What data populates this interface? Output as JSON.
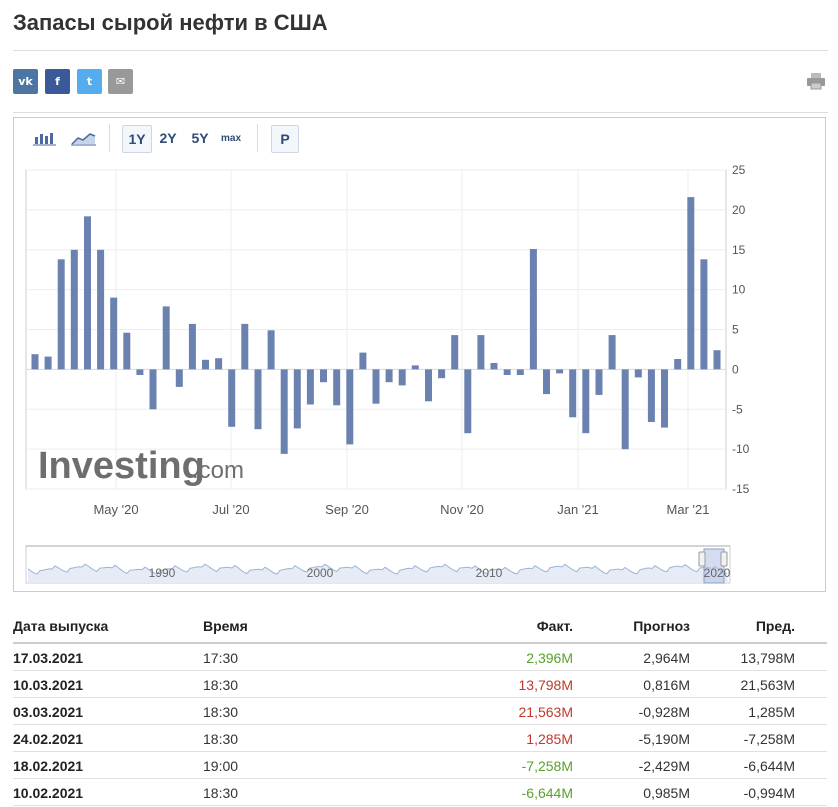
{
  "page": {
    "title": "Запасы сырой нефти в США"
  },
  "share": [
    {
      "name": "vk",
      "glyph": "vk",
      "color": "#4c75a3"
    },
    {
      "name": "facebook",
      "glyph": "f",
      "color": "#3b5998"
    },
    {
      "name": "twitter",
      "glyph": "t",
      "color": "#55acee"
    },
    {
      "name": "email",
      "glyph": "✉",
      "color": "#999999"
    }
  ],
  "toolbar": {
    "bar_icon": "bar-chart-icon",
    "area_icon": "area-chart-icon",
    "ranges": [
      "1Y",
      "2Y",
      "5Y",
      "max"
    ],
    "active_range": "1Y",
    "p_label": "P"
  },
  "watermark": {
    "brand": "Investing",
    "suffix": ".com"
  },
  "chart_data": {
    "type": "bar",
    "color": "#6b82b0",
    "ylim": [
      -15,
      25
    ],
    "yticks": [
      25,
      20,
      15,
      10,
      5,
      0,
      -5,
      -10,
      -15
    ],
    "xtick_labels": [
      "May '20",
      "Jul '20",
      "Sep '20",
      "Nov '20",
      "Jan '21",
      "Mar '21"
    ],
    "grid": true,
    "values": [
      1.9,
      1.6,
      13.8,
      15.0,
      19.2,
      15.0,
      9.0,
      4.6,
      -0.7,
      -5.0,
      7.9,
      -2.2,
      5.7,
      1.2,
      1.4,
      -7.2,
      5.7,
      -7.5,
      4.9,
      -10.6,
      -7.4,
      -4.4,
      -1.6,
      -4.5,
      -9.4,
      2.1,
      -4.3,
      -1.6,
      -2.0,
      0.5,
      -4.0,
      -1.1,
      4.3,
      -8.0,
      4.3,
      0.8,
      -0.7,
      -0.7,
      15.1,
      -3.1,
      -0.5,
      -6.0,
      -8.0,
      -3.2,
      4.3,
      -10.0,
      -1.0,
      -6.6,
      -7.3,
      1.3,
      21.6,
      13.8,
      2.4
    ],
    "navigator": {
      "labels": [
        "1990",
        "2000",
        "2010",
        "2020"
      ]
    }
  },
  "table": {
    "headers": {
      "date": "Дата выпуска",
      "time": "Время",
      "actual": "Факт.",
      "forecast": "Прогноз",
      "previous": "Пред."
    },
    "rows": [
      {
        "date": "17.03.2021",
        "time": "17:30",
        "actual": "2,396M",
        "actual_color": "green",
        "forecast": "2,964M",
        "previous": "13,798M"
      },
      {
        "date": "10.03.2021",
        "time": "18:30",
        "actual": "13,798M",
        "actual_color": "red",
        "forecast": "0,816M",
        "previous": "21,563M"
      },
      {
        "date": "03.03.2021",
        "time": "18:30",
        "actual": "21,563M",
        "actual_color": "red",
        "forecast": "-0,928M",
        "previous": "1,285M"
      },
      {
        "date": "24.02.2021",
        "time": "18:30",
        "actual": "1,285M",
        "actual_color": "red",
        "forecast": "-5,190M",
        "previous": "-7,258M"
      },
      {
        "date": "18.02.2021",
        "time": "19:00",
        "actual": "-7,258M",
        "actual_color": "green",
        "forecast": "-2,429M",
        "previous": "-6,644M"
      },
      {
        "date": "10.02.2021",
        "time": "18:30",
        "actual": "-6,644M",
        "actual_color": "green",
        "forecast": "0,985M",
        "previous": "-0,994M"
      }
    ]
  }
}
